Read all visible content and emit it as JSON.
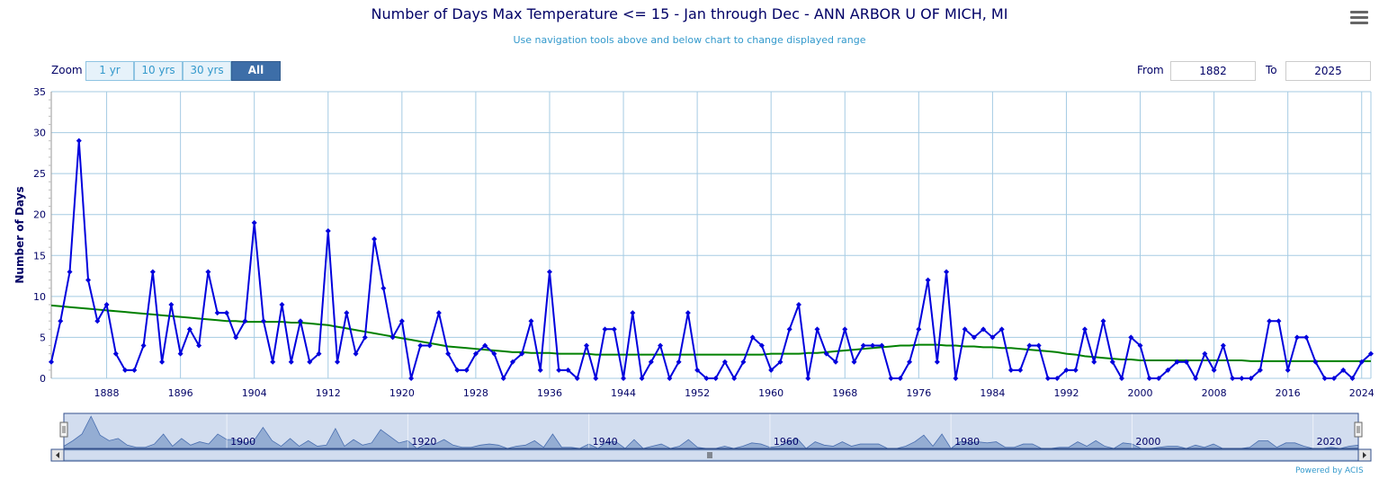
{
  "header": {
    "title": "Number of Days Max Temperature <= 15 - Jan through Dec - ANN ARBOR U OF MICH, MI",
    "subtitle": "Use navigation tools above and below chart to change displayed range"
  },
  "zoom": {
    "label": "Zoom",
    "buttons": [
      "1 yr",
      "10 yrs",
      "30 yrs",
      "All"
    ],
    "active": "All"
  },
  "range": {
    "from_label": "From",
    "from_value": "1882",
    "to_label": "To",
    "to_value": "2025"
  },
  "footer": {
    "credit": "Powered by ACIS"
  },
  "colors": {
    "series": "#0000dd",
    "trend": "#008000",
    "grid": "#a5cbe3",
    "axis_text": "#000066",
    "navigator_fill": "#7f9cc9",
    "navigator_bg": "#d2ddef"
  },
  "chart_data": {
    "type": "line",
    "title": "Number of Days Max Temperature <= 15 - Jan through Dec - ANN ARBOR U OF MICH, MI",
    "xlabel": "",
    "ylabel": "Number of Days",
    "xlim": [
      1882,
      2025
    ],
    "ylim": [
      0,
      35
    ],
    "yticks": [
      0,
      5,
      10,
      15,
      20,
      25,
      30,
      35
    ],
    "xticks": [
      1888,
      1896,
      1904,
      1912,
      1920,
      1928,
      1936,
      1944,
      1952,
      1960,
      1968,
      1976,
      1984,
      1992,
      2000,
      2008,
      2016,
      2024
    ],
    "grid": true,
    "start_year": 1882,
    "series": [
      {
        "values": [
          2,
          7,
          13,
          29,
          12,
          7,
          9,
          3,
          1,
          1,
          4,
          13,
          2,
          9,
          3,
          6,
          4,
          13,
          8,
          8,
          5,
          7,
          19,
          7,
          2,
          9,
          2,
          7,
          2,
          3,
          18,
          2,
          8,
          3,
          5,
          17,
          11,
          5,
          7,
          0,
          4,
          4,
          8,
          3,
          1,
          1,
          3,
          4,
          3,
          0,
          2,
          3,
          7,
          1,
          13,
          1,
          1,
          0,
          4,
          0,
          6,
          6,
          0,
          8,
          0,
          2,
          4,
          0,
          2,
          8,
          1,
          0,
          0,
          2,
          0,
          2,
          5,
          4,
          1,
          2,
          6,
          9,
          0,
          6,
          3,
          2,
          6,
          2,
          4,
          4,
          4,
          0,
          0,
          2,
          6,
          12,
          2,
          13,
          0,
          6,
          5,
          6,
          5,
          6,
          1,
          1,
          4,
          4,
          0,
          0,
          1,
          1,
          6,
          2,
          7,
          2,
          0,
          5,
          4,
          0,
          0,
          1,
          2,
          2,
          0,
          3,
          1,
          4,
          0,
          0,
          0,
          1,
          7,
          7,
          1,
          5,
          5,
          2,
          0,
          0,
          1,
          0,
          2,
          3
        ]
      },
      {
        "trend": true,
        "values": [
          8.9,
          8.8,
          8.7,
          8.6,
          8.5,
          8.4,
          8.3,
          8.2,
          8.1,
          8.0,
          7.9,
          7.8,
          7.7,
          7.6,
          7.5,
          7.4,
          7.3,
          7.2,
          7.1,
          7.0,
          7.0,
          6.9,
          6.9,
          6.9,
          6.9,
          6.9,
          6.8,
          6.8,
          6.7,
          6.6,
          6.5,
          6.3,
          6.1,
          5.9,
          5.7,
          5.5,
          5.3,
          5.1,
          4.9,
          4.7,
          4.5,
          4.3,
          4.1,
          3.9,
          3.8,
          3.7,
          3.6,
          3.5,
          3.4,
          3.3,
          3.2,
          3.2,
          3.1,
          3.1,
          3.1,
          3.0,
          3.0,
          3.0,
          3.0,
          2.9,
          2.9,
          2.9,
          2.9,
          2.9,
          2.9,
          2.9,
          2.9,
          2.9,
          2.9,
          2.9,
          2.9,
          2.9,
          2.9,
          2.9,
          2.9,
          2.9,
          2.9,
          2.9,
          3.0,
          3.0,
          3.0,
          3.0,
          3.1,
          3.1,
          3.2,
          3.3,
          3.4,
          3.5,
          3.6,
          3.7,
          3.8,
          3.9,
          4.0,
          4.0,
          4.1,
          4.1,
          4.1,
          4.0,
          4.0,
          3.9,
          3.9,
          3.8,
          3.8,
          3.7,
          3.7,
          3.6,
          3.5,
          3.4,
          3.3,
          3.2,
          3.0,
          2.9,
          2.7,
          2.6,
          2.5,
          2.4,
          2.3,
          2.3,
          2.2,
          2.2,
          2.2,
          2.2,
          2.2,
          2.2,
          2.2,
          2.2,
          2.2,
          2.2,
          2.2,
          2.2,
          2.1,
          2.1,
          2.1,
          2.1,
          2.1,
          2.1,
          2.1,
          2.1,
          2.1,
          2.1,
          2.1,
          2.1,
          2.1,
          2.1
        ]
      }
    ],
    "navigator": {
      "tick_labels": [
        "1900",
        "1920",
        "1940",
        "1960",
        "1980",
        "2000",
        "2020"
      ]
    }
  }
}
